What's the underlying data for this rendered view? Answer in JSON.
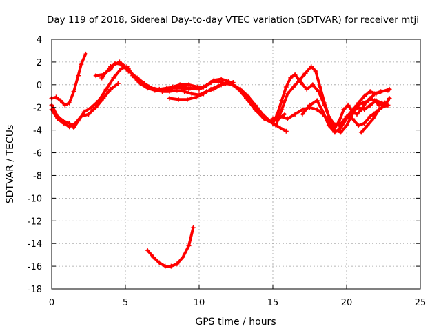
{
  "chart_data": {
    "type": "scatter",
    "title": "Day 119 of 2018, Sidereal Day-to-day VTEC variation (SDTVAR) for receiver mtji",
    "xlabel": "GPS time / hours",
    "ylabel": "SDTVAR / TECUs",
    "xlim": [
      0,
      25
    ],
    "ylim": [
      -18,
      4
    ],
    "xticks": [
      0,
      5,
      10,
      15,
      20,
      25
    ],
    "yticks": [
      -18,
      -16,
      -14,
      -12,
      -10,
      -8,
      -6,
      -4,
      -2,
      0,
      2,
      4
    ],
    "grid": true,
    "marker": "plus",
    "color": "#ff0000",
    "series": [
      {
        "name": "arc-a",
        "points": [
          [
            0.0,
            -1.2
          ],
          [
            0.3,
            -1.1
          ],
          [
            0.6,
            -1.4
          ],
          [
            0.9,
            -1.8
          ],
          [
            1.2,
            -1.6
          ],
          [
            1.5,
            -0.6
          ],
          [
            1.8,
            0.8
          ],
          [
            2.0,
            1.8
          ],
          [
            2.3,
            2.7
          ]
        ]
      },
      {
        "name": "arc-b",
        "points": [
          [
            0.0,
            -2.2
          ],
          [
            0.4,
            -3.0
          ],
          [
            0.8,
            -3.4
          ],
          [
            1.2,
            -3.7
          ],
          [
            1.6,
            -3.4
          ],
          [
            2.0,
            -2.8
          ],
          [
            2.5,
            -2.6
          ],
          [
            3.0,
            -2.0
          ],
          [
            3.5,
            -1.2
          ],
          [
            4.0,
            -0.4
          ],
          [
            4.5,
            0.1
          ]
        ]
      },
      {
        "name": "arc-c",
        "points": [
          [
            0.0,
            -1.8
          ],
          [
            0.4,
            -2.8
          ],
          [
            0.8,
            -3.2
          ],
          [
            1.2,
            -3.4
          ],
          [
            1.5,
            -3.8
          ],
          [
            1.8,
            -3.2
          ],
          [
            2.2,
            -2.4
          ],
          [
            2.7,
            -2.0
          ],
          [
            3.2,
            -1.4
          ],
          [
            3.7,
            -0.4
          ],
          [
            4.2,
            0.6
          ],
          [
            4.7,
            1.4
          ],
          [
            5.1,
            1.6
          ],
          [
            5.5,
            0.8
          ],
          [
            6.0,
            0.1
          ],
          [
            6.5,
            -0.3
          ],
          [
            7.0,
            -0.5
          ],
          [
            7.5,
            -0.6
          ],
          [
            8.0,
            -0.6
          ],
          [
            8.5,
            -0.5
          ],
          [
            9.0,
            -0.6
          ],
          [
            9.5,
            -0.8
          ],
          [
            10.0,
            -0.9
          ],
          [
            10.5,
            -0.6
          ],
          [
            11.0,
            -0.4
          ],
          [
            11.5,
            0.0
          ],
          [
            12.0,
            0.2
          ],
          [
            12.5,
            -0.2
          ],
          [
            13.0,
            -0.8
          ],
          [
            13.5,
            -1.6
          ],
          [
            14.0,
            -2.4
          ],
          [
            14.5,
            -3.0
          ],
          [
            15.0,
            -3.4
          ],
          [
            15.5,
            -3.8
          ],
          [
            15.9,
            -4.1
          ]
        ]
      },
      {
        "name": "arc-d",
        "points": [
          [
            3.0,
            0.8
          ],
          [
            3.5,
            0.9
          ],
          [
            4.0,
            1.4
          ],
          [
            4.3,
            1.9
          ],
          [
            4.7,
            1.8
          ],
          [
            5.2,
            1.2
          ],
          [
            5.8,
            0.6
          ],
          [
            6.3,
            0.1
          ],
          [
            6.8,
            -0.3
          ],
          [
            7.3,
            -0.4
          ],
          [
            7.8,
            -0.3
          ],
          [
            8.3,
            -0.2
          ],
          [
            8.8,
            -0.3
          ],
          [
            9.3,
            -0.4
          ],
          [
            9.8,
            -0.3
          ],
          [
            10.3,
            -0.2
          ],
          [
            10.8,
            0.2
          ],
          [
            11.3,
            0.3
          ],
          [
            11.8,
            0.1
          ],
          [
            12.3,
            0.0
          ],
          [
            12.8,
            -0.4
          ],
          [
            13.3,
            -1.0
          ],
          [
            13.8,
            -1.8
          ],
          [
            14.3,
            -2.6
          ],
          [
            14.8,
            -3.2
          ],
          [
            15.3,
            -3.1
          ],
          [
            15.8,
            -2.6
          ]
        ]
      },
      {
        "name": "arc-e",
        "points": [
          [
            3.4,
            0.6
          ],
          [
            4.0,
            1.6
          ],
          [
            4.6,
            2.0
          ],
          [
            5.2,
            1.4
          ],
          [
            5.8,
            0.4
          ],
          [
            6.5,
            -0.2
          ],
          [
            7.0,
            -0.4
          ],
          [
            7.6,
            -0.5
          ],
          [
            8.2,
            -0.3
          ],
          [
            8.8,
            -0.2
          ],
          [
            9.4,
            -0.3
          ],
          [
            10.0,
            -0.4
          ],
          [
            10.5,
            -0.1
          ],
          [
            11.0,
            0.4
          ],
          [
            11.5,
            0.5
          ],
          [
            12.0,
            0.3
          ],
          [
            12.6,
            -0.3
          ],
          [
            13.2,
            -1.2
          ],
          [
            13.8,
            -2.2
          ],
          [
            14.4,
            -3.0
          ],
          [
            15.0,
            -3.4
          ]
        ]
      },
      {
        "name": "arc-f",
        "points": [
          [
            8.0,
            -1.2
          ],
          [
            8.6,
            -1.3
          ],
          [
            9.2,
            -1.3
          ],
          [
            9.8,
            -1.1
          ],
          [
            10.3,
            -0.8
          ],
          [
            10.8,
            -0.4
          ],
          [
            11.3,
            -0.1
          ],
          [
            11.8,
            0.1
          ],
          [
            12.3,
            0.2
          ]
        ]
      },
      {
        "name": "arc-g",
        "points": [
          [
            8.2,
            -0.2
          ],
          [
            8.7,
            0.0
          ],
          [
            9.3,
            0.0
          ],
          [
            9.9,
            -0.2
          ]
        ]
      },
      {
        "name": "arc-h",
        "points": [
          [
            15.0,
            -3.4
          ],
          [
            15.3,
            -2.6
          ],
          [
            15.6,
            -1.4
          ],
          [
            15.9,
            -0.2
          ],
          [
            16.2,
            0.6
          ],
          [
            16.5,
            0.9
          ],
          [
            16.9,
            0.2
          ],
          [
            17.3,
            -0.4
          ],
          [
            17.7,
            0.0
          ],
          [
            18.1,
            -0.6
          ],
          [
            18.5,
            -1.8
          ],
          [
            18.9,
            -3.2
          ],
          [
            19.2,
            -3.8
          ],
          [
            19.5,
            -3.2
          ],
          [
            19.8,
            -2.2
          ],
          [
            20.1,
            -1.8
          ],
          [
            20.4,
            -2.4
          ],
          [
            20.7,
            -2.6
          ],
          [
            21.0,
            -2.2
          ],
          [
            21.3,
            -1.6
          ],
          [
            21.6,
            -1.2
          ],
          [
            21.9,
            -1.4
          ],
          [
            22.2,
            -1.8
          ],
          [
            22.6,
            -1.6
          ]
        ]
      },
      {
        "name": "arc-i",
        "points": [
          [
            15.2,
            -3.6
          ],
          [
            15.6,
            -2.2
          ],
          [
            16.0,
            -0.8
          ],
          [
            16.4,
            -0.2
          ],
          [
            16.8,
            0.4
          ],
          [
            17.2,
            1.0
          ],
          [
            17.6,
            1.6
          ],
          [
            17.9,
            1.2
          ],
          [
            18.2,
            -0.2
          ],
          [
            18.5,
            -1.6
          ],
          [
            18.8,
            -2.8
          ],
          [
            19.1,
            -3.4
          ],
          [
            19.5,
            -3.6
          ],
          [
            19.9,
            -3.0
          ],
          [
            20.3,
            -2.4
          ],
          [
            20.7,
            -1.8
          ],
          [
            21.1,
            -1.6
          ],
          [
            21.5,
            -1.4
          ],
          [
            21.9,
            -0.8
          ],
          [
            22.3,
            -0.6
          ],
          [
            22.8,
            -0.5
          ]
        ]
      },
      {
        "name": "arc-j",
        "points": [
          [
            15.0,
            -3.0
          ],
          [
            15.5,
            -2.8
          ],
          [
            16.0,
            -3.0
          ],
          [
            16.5,
            -2.6
          ],
          [
            17.0,
            -2.2
          ],
          [
            17.5,
            -2.0
          ],
          [
            18.0,
            -2.2
          ],
          [
            18.4,
            -2.6
          ],
          [
            18.8,
            -3.2
          ],
          [
            19.2,
            -4.0
          ],
          [
            19.6,
            -4.2
          ],
          [
            20.0,
            -3.6
          ],
          [
            20.4,
            -2.6
          ],
          [
            20.8,
            -1.6
          ],
          [
            21.2,
            -1.0
          ],
          [
            21.6,
            -0.6
          ],
          [
            22.0,
            -0.8
          ],
          [
            22.4,
            -0.6
          ],
          [
            22.9,
            -0.4
          ]
        ]
      },
      {
        "name": "arc-k",
        "points": [
          [
            17.0,
            -2.6
          ],
          [
            17.5,
            -1.8
          ],
          [
            18.0,
            -1.4
          ],
          [
            18.4,
            -2.4
          ],
          [
            18.8,
            -3.6
          ],
          [
            19.2,
            -4.2
          ],
          [
            19.6,
            -3.8
          ],
          [
            20.0,
            -3.0
          ],
          [
            20.4,
            -2.4
          ],
          [
            20.8,
            -2.0
          ],
          [
            21.2,
            -2.2
          ],
          [
            21.6,
            -1.8
          ],
          [
            22.0,
            -1.4
          ],
          [
            22.4,
            -1.6
          ],
          [
            22.8,
            -1.8
          ]
        ]
      },
      {
        "name": "arc-l",
        "points": [
          [
            20.0,
            -2.8
          ],
          [
            20.4,
            -3.0
          ],
          [
            20.8,
            -3.6
          ],
          [
            21.2,
            -3.4
          ],
          [
            21.6,
            -2.8
          ],
          [
            22.0,
            -2.4
          ],
          [
            22.4,
            -2.0
          ],
          [
            22.8,
            -1.8
          ]
        ]
      },
      {
        "name": "arc-m",
        "points": [
          [
            21.0,
            -4.2
          ],
          [
            21.4,
            -3.6
          ],
          [
            21.8,
            -3.0
          ],
          [
            22.2,
            -2.2
          ],
          [
            22.6,
            -1.8
          ],
          [
            22.9,
            -1.2
          ]
        ]
      },
      {
        "name": "arc-n",
        "points": [
          [
            6.5,
            -14.6
          ],
          [
            6.9,
            -15.2
          ],
          [
            7.3,
            -15.7
          ],
          [
            7.7,
            -16.0
          ],
          [
            8.1,
            -16.0
          ],
          [
            8.5,
            -15.8
          ],
          [
            8.9,
            -15.2
          ],
          [
            9.3,
            -14.2
          ],
          [
            9.6,
            -12.6
          ]
        ]
      }
    ]
  }
}
